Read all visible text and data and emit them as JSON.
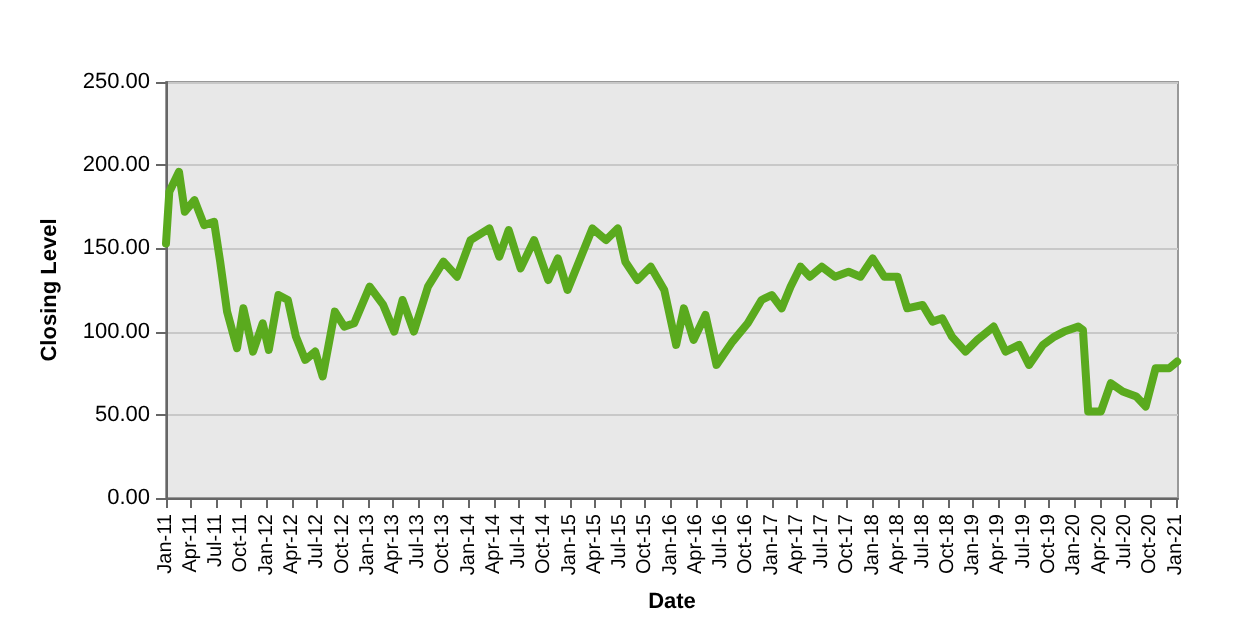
{
  "chart_data": {
    "type": "line",
    "xlabel": "Date",
    "ylabel": "Closing Level",
    "x": [
      "2011-01-01",
      "2011-01-13",
      "2011-02-17",
      "2011-03-10",
      "2011-04-14",
      "2011-05-19",
      "2011-06-24",
      "2011-07-16",
      "2011-08-10",
      "2011-09-15",
      "2011-10-08",
      "2011-11-12",
      "2011-12-17",
      "2012-01-08",
      "2012-02-12",
      "2012-03-17",
      "2012-04-15",
      "2012-05-19",
      "2012-06-24",
      "2012-07-21",
      "2012-09-03",
      "2012-10-07",
      "2012-11-12",
      "2013-01-07",
      "2013-02-25",
      "2013-04-06",
      "2013-05-06",
      "2013-06-16",
      "2013-08-06",
      "2013-10-01",
      "2013-11-19",
      "2014-01-07",
      "2014-03-16",
      "2014-04-21",
      "2014-05-25",
      "2014-07-07",
      "2014-08-25",
      "2014-10-15",
      "2014-11-19",
      "2014-12-24",
      "2015-03-24",
      "2015-05-12",
      "2015-06-24",
      "2015-07-21",
      "2015-09-03",
      "2015-10-21",
      "2015-12-09",
      "2016-01-21",
      "2016-02-18",
      "2016-03-24",
      "2016-05-06",
      "2016-06-15",
      "2016-08-12",
      "2016-10-06",
      "2016-11-25",
      "2017-01-01",
      "2017-02-06",
      "2017-03-10",
      "2017-04-15",
      "2017-05-19",
      "2017-07-01",
      "2017-08-18",
      "2017-10-06",
      "2017-11-18",
      "2018-01-01",
      "2018-02-12",
      "2018-04-01",
      "2018-05-06",
      "2018-07-01",
      "2018-08-06",
      "2018-09-10",
      "2018-10-15",
      "2018-12-03",
      "2019-01-15",
      "2019-03-15",
      "2019-04-27",
      "2019-06-15",
      "2019-07-21",
      "2019-09-09",
      "2019-10-21",
      "2019-11-25",
      "2020-01-15",
      "2020-02-01",
      "2020-02-20",
      "2020-04-06",
      "2020-05-12",
      "2020-06-24",
      "2020-08-12",
      "2020-09-15",
      "2020-10-21",
      "2020-12-09",
      "2021-01-07"
    ],
    "series": [
      {
        "color": "#5aaa1e",
        "values": [
          153,
          184,
          196,
          172,
          179,
          164,
          166,
          142,
          112,
          90,
          114,
          88,
          105,
          89,
          122,
          119,
          97,
          83,
          88,
          73,
          112,
          103,
          105,
          127,
          116,
          100,
          119,
          100,
          127,
          142,
          133,
          155,
          162,
          145,
          161,
          138,
          155,
          131,
          144,
          125,
          162,
          155,
          162,
          142,
          131,
          139,
          125,
          92,
          114,
          95,
          110,
          80,
          94,
          105,
          119,
          122,
          114,
          127,
          139,
          133,
          139,
          133,
          136,
          133,
          144,
          133,
          133,
          114,
          116,
          106,
          108,
          97,
          88,
          95,
          103,
          88,
          92,
          80,
          92,
          97,
          100,
          103,
          101,
          52,
          52,
          69,
          64,
          61,
          55,
          78,
          78,
          82
        ]
      }
    ],
    "xlim": [
      "2011-01-01",
      "2021-01-10"
    ],
    "xticks": [
      {
        "value": "2011-01-01",
        "label": "Jan-11"
      },
      {
        "value": "2011-04-01",
        "label": "Apr-11"
      },
      {
        "value": "2011-07-01",
        "label": "Jul-11"
      },
      {
        "value": "2011-10-01",
        "label": "Oct-11"
      },
      {
        "value": "2012-01-01",
        "label": "Jan-12"
      },
      {
        "value": "2012-04-01",
        "label": "Apr-12"
      },
      {
        "value": "2012-07-01",
        "label": "Jul-12"
      },
      {
        "value": "2012-10-01",
        "label": "Oct-12"
      },
      {
        "value": "2013-01-01",
        "label": "Jan-13"
      },
      {
        "value": "2013-04-01",
        "label": "Apr-13"
      },
      {
        "value": "2013-07-01",
        "label": "Jul-13"
      },
      {
        "value": "2013-10-01",
        "label": "Oct-13"
      },
      {
        "value": "2014-01-01",
        "label": "Jan-14"
      },
      {
        "value": "2014-04-01",
        "label": "Apr-14"
      },
      {
        "value": "2014-07-01",
        "label": "Jul-14"
      },
      {
        "value": "2014-10-01",
        "label": "Oct-14"
      },
      {
        "value": "2015-01-01",
        "label": "Jan-15"
      },
      {
        "value": "2015-04-01",
        "label": "Apr-15"
      },
      {
        "value": "2015-07-01",
        "label": "Jul-15"
      },
      {
        "value": "2015-10-01",
        "label": "Oct-15"
      },
      {
        "value": "2016-01-01",
        "label": "Jan-16"
      },
      {
        "value": "2016-04-01",
        "label": "Apr-16"
      },
      {
        "value": "2016-07-01",
        "label": "Jul-16"
      },
      {
        "value": "2016-10-01",
        "label": "Oct-16"
      },
      {
        "value": "2017-01-01",
        "label": "Jan-17"
      },
      {
        "value": "2017-04-01",
        "label": "Apr-17"
      },
      {
        "value": "2017-07-01",
        "label": "Jul-17"
      },
      {
        "value": "2017-10-01",
        "label": "Oct-17"
      },
      {
        "value": "2018-01-01",
        "label": "Jan-18"
      },
      {
        "value": "2018-04-01",
        "label": "Apr-18"
      },
      {
        "value": "2018-07-01",
        "label": "Jul-18"
      },
      {
        "value": "2018-10-01",
        "label": "Oct-18"
      },
      {
        "value": "2019-01-01",
        "label": "Jan-19"
      },
      {
        "value": "2019-04-01",
        "label": "Apr-19"
      },
      {
        "value": "2019-07-01",
        "label": "Jul-19"
      },
      {
        "value": "2019-10-01",
        "label": "Oct-19"
      },
      {
        "value": "2020-01-01",
        "label": "Jan-20"
      },
      {
        "value": "2020-04-01",
        "label": "Apr-20"
      },
      {
        "value": "2020-07-01",
        "label": "Jul-20"
      },
      {
        "value": "2020-10-01",
        "label": "Oct-20"
      },
      {
        "value": "2021-01-01",
        "label": "Jan-21"
      }
    ],
    "ylim": [
      0,
      250
    ],
    "yticks": [
      {
        "value": 0,
        "label": "0.00"
      },
      {
        "value": 50,
        "label": "50.00"
      },
      {
        "value": 100,
        "label": "100.00"
      },
      {
        "value": 150,
        "label": "150.00"
      },
      {
        "value": 200,
        "label": "200.00"
      },
      {
        "value": 250,
        "label": "250.00"
      }
    ],
    "grid": "y",
    "marker": "none",
    "line_style": "solid"
  }
}
